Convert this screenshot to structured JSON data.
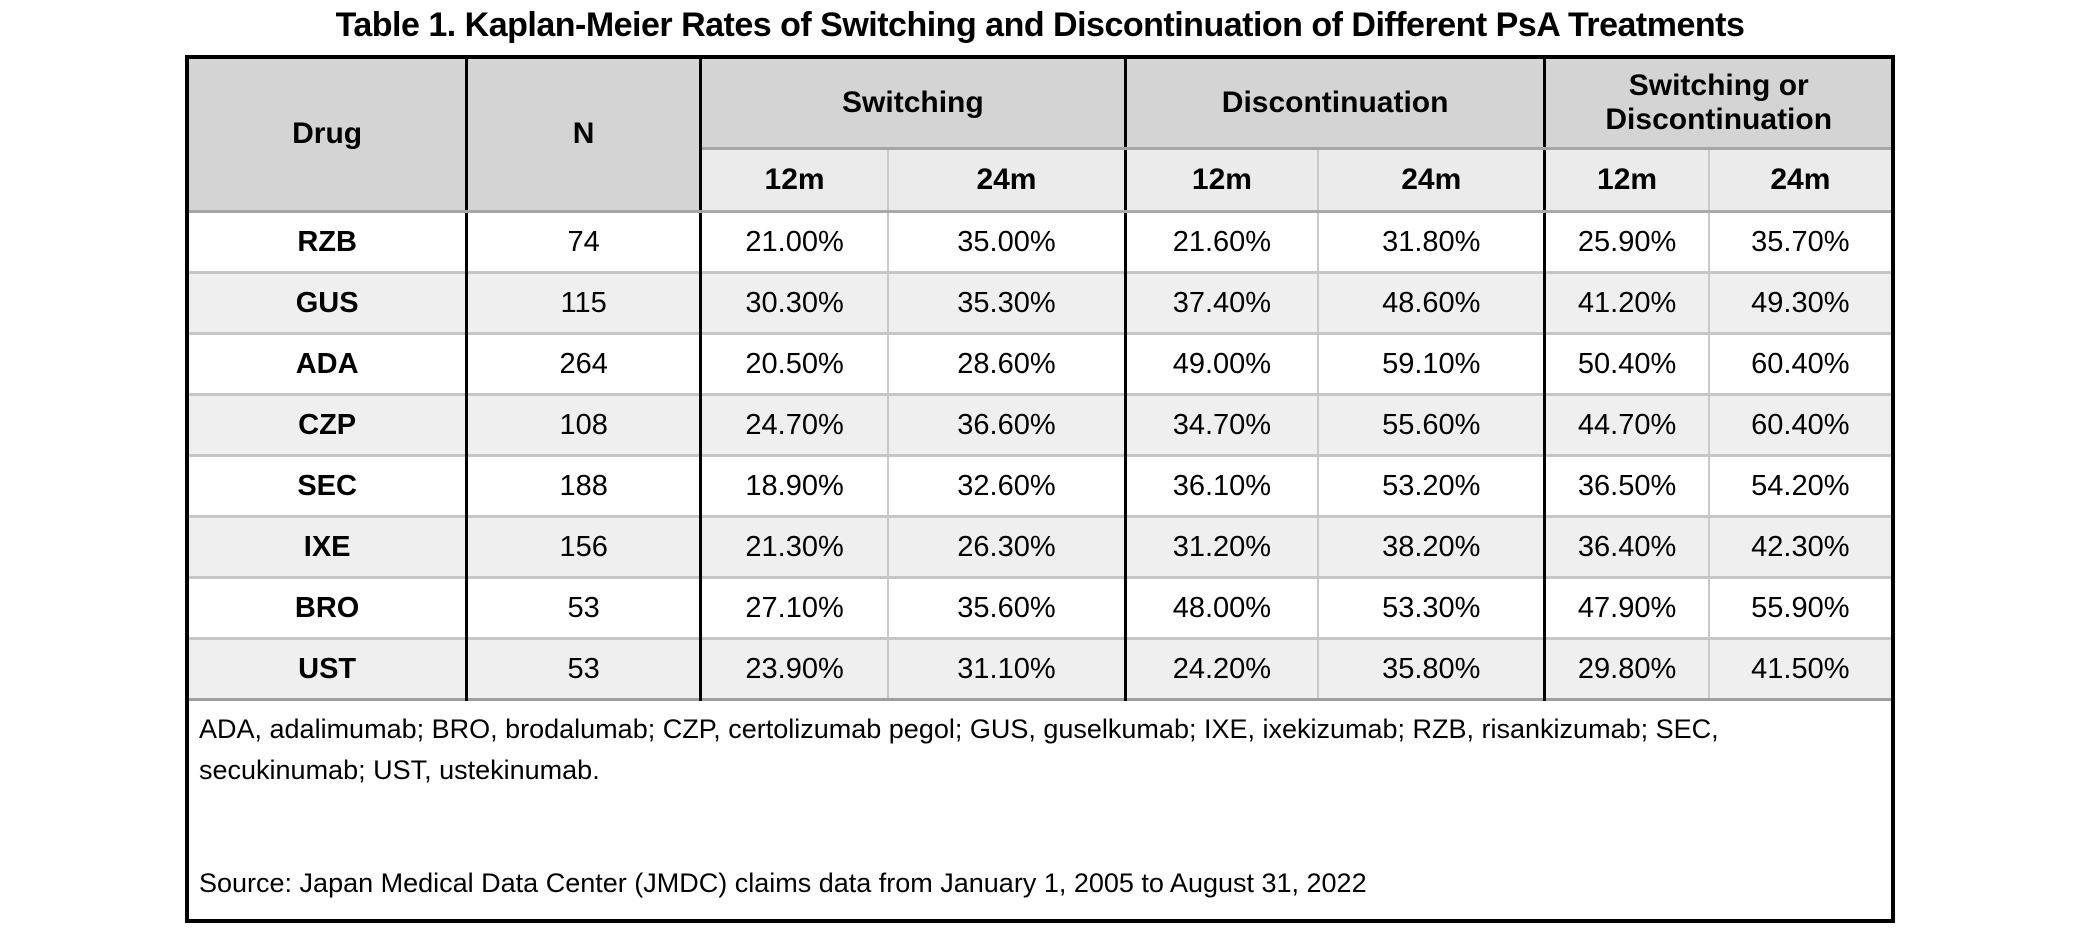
{
  "title": "Table 1. Kaplan-Meier Rates of Switching and Discontinuation of Different PsA Treatments",
  "table": {
    "column_headers": {
      "drug": "Drug",
      "n": "N",
      "groups": [
        {
          "label": "Switching",
          "sub": [
            "12m",
            "24m"
          ]
        },
        {
          "label": "Discontinuation",
          "sub": [
            "12m",
            "24m"
          ]
        },
        {
          "label": "Switching or Discontinuation",
          "sub": [
            "12m",
            "24m"
          ]
        }
      ]
    },
    "rows": [
      {
        "drug": "RZB",
        "n": "74",
        "values": [
          "21.00%",
          "35.00%",
          "21.60%",
          "31.80%",
          "25.90%",
          "35.70%"
        ]
      },
      {
        "drug": "GUS",
        "n": "115",
        "values": [
          "30.30%",
          "35.30%",
          "37.40%",
          "48.60%",
          "41.20%",
          "49.30%"
        ]
      },
      {
        "drug": "ADA",
        "n": "264",
        "values": [
          "20.50%",
          "28.60%",
          "49.00%",
          "59.10%",
          "50.40%",
          "60.40%"
        ]
      },
      {
        "drug": "CZP",
        "n": "108",
        "values": [
          "24.70%",
          "36.60%",
          "34.70%",
          "55.60%",
          "44.70%",
          "60.40%"
        ]
      },
      {
        "drug": "SEC",
        "n": "188",
        "values": [
          "18.90%",
          "32.60%",
          "36.10%",
          "53.20%",
          "36.50%",
          "54.20%"
        ]
      },
      {
        "drug": "IXE",
        "n": "156",
        "values": [
          "21.30%",
          "26.30%",
          "31.20%",
          "38.20%",
          "36.40%",
          "42.30%"
        ]
      },
      {
        "drug": "BRO",
        "n": "53",
        "values": [
          "27.10%",
          "35.60%",
          "48.00%",
          "53.30%",
          "47.90%",
          "55.90%"
        ]
      },
      {
        "drug": "UST",
        "n": "53",
        "values": [
          "23.90%",
          "31.10%",
          "24.20%",
          "35.80%",
          "29.80%",
          "41.50%"
        ]
      }
    ],
    "abbreviations": "ADA, adalimumab; BRO, brodalumab; CZP, certolizumab pegol; GUS, guselkumab; IXE, ixekizumab; RZB, risankizumab; SEC, secukinumab; UST, ustekinumab.",
    "source": "Source: Japan Medical Data Center (JMDC) claims data from January 1, 2005 to August 31, 2022"
  },
  "colors": {
    "group_header_bg": "#d4d4d4",
    "subheader_bg": "#ebebeb",
    "row_stripe_bg": "#efefef",
    "strong_border": "#000000",
    "thin_border": "#c9c9c9"
  }
}
